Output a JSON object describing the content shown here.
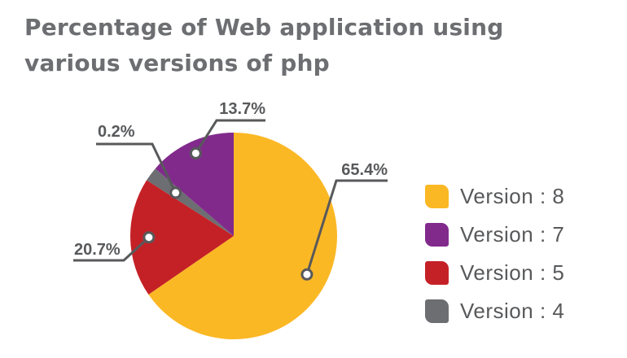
{
  "chart_data": {
    "type": "pie",
    "title_lines": [
      "Percentage of Web application using",
      "various versions of php"
    ],
    "slices": [
      {
        "label": "Version : 8",
        "value": 65.4,
        "value_label": "65.4%",
        "color": "#fbb825"
      },
      {
        "label": "Version : 5",
        "value": 20.7,
        "value_label": "20.7%",
        "color": "#c42127"
      },
      {
        "label": "Version : 4",
        "value": 0.2,
        "value_label": "0.2%",
        "color": "#6d6e71"
      },
      {
        "label": "Version : 7",
        "value": 13.7,
        "value_label": "13.7%",
        "color": "#812a8c"
      }
    ],
    "legend": [
      {
        "label": "Version : 8",
        "color": "#fbb825"
      },
      {
        "label": "Version : 7",
        "color": "#812a8c"
      },
      {
        "label": "Version : 5",
        "color": "#c42127"
      },
      {
        "label": "Version : 4",
        "color": "#6d6e71"
      }
    ],
    "legend_position": "right",
    "annotation_color": "#58595b"
  }
}
